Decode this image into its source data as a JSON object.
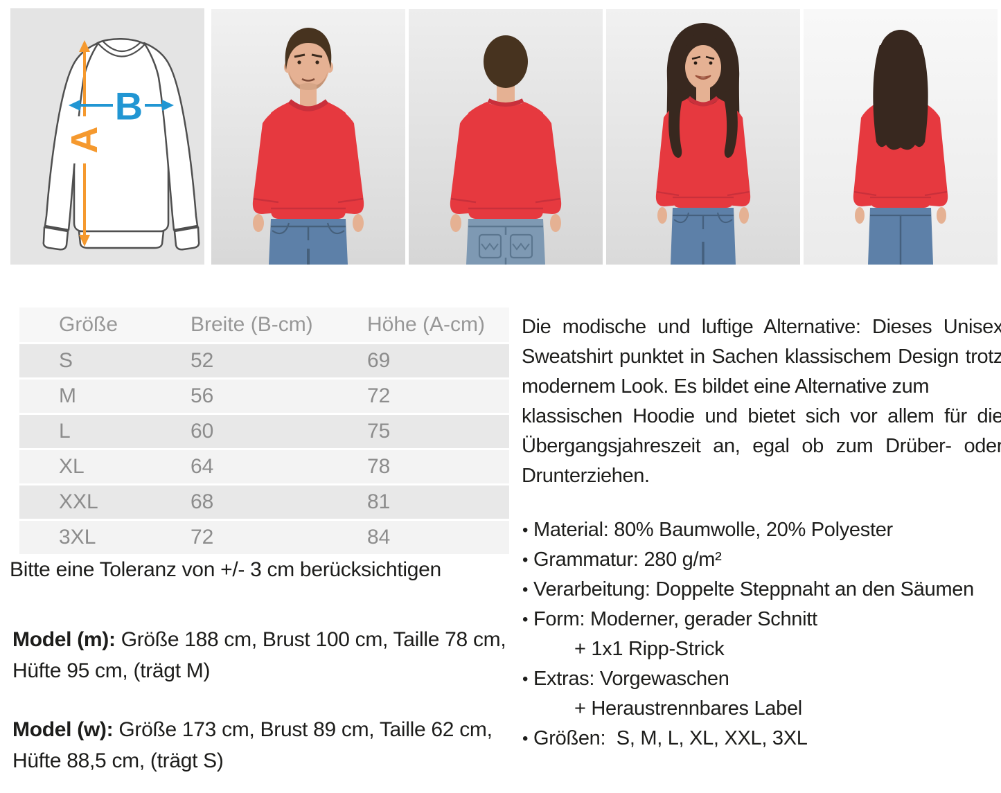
{
  "colors": {
    "sweatshirt-red": "#e6393f",
    "arrow-orange": "#f5992e",
    "arrow-blue": "#2196d3",
    "jeans-blue": "#5d80a8",
    "jeans-blue-light": "#7e99b3",
    "hair-brown": "#47331f",
    "hair-dark": "#38281f",
    "skin-tone": "#e5b193"
  },
  "size_diagram": {
    "label_a": "A",
    "label_b": "B"
  },
  "table": {
    "headers": [
      "Größe",
      "Breite (B-cm)",
      "Höhe (A-cm)"
    ],
    "rows": [
      [
        "S",
        "52",
        "69"
      ],
      [
        "M",
        "56",
        "72"
      ],
      [
        "L",
        "60",
        "75"
      ],
      [
        "XL",
        "64",
        "78"
      ],
      [
        "XXL",
        "68",
        "81"
      ],
      [
        "3XL",
        "72",
        "84"
      ]
    ]
  },
  "tolerance_note": "Bitte eine Toleranz von +/- 3 cm berücksichtigen",
  "model_m": {
    "label": "Model (m):",
    "text": " Größe 188 cm, Brust 100 cm, Taille 78 cm, Hüfte 95 cm, (trägt M)"
  },
  "model_w": {
    "label": "Model (w):",
    "text": " Größe 173 cm, Brust 89 cm, Taille 62 cm, Hüfte 88,5 cm, (trägt S)"
  },
  "description": [
    "Die modische und luftige Alternative: Dieses Unisex Sweatshirt punktet in Sachen klassischem Design trotz modernem Look. Es bildet eine Alternative zum",
    "klassischen Hoodie und bietet sich vor allem für die Übergangsjahreszeit an, egal ob zum Drüber- oder Drunterziehen."
  ],
  "features": [
    {
      "text": "Material: 80% Baumwolle, 20% Polyester",
      "indent": false
    },
    {
      "text": "Grammatur: 280 g/m²",
      "indent": false
    },
    {
      "text": "Verarbeitung: Doppelte Steppnaht an den Säumen",
      "indent": false
    },
    {
      "text": "Form: Moderner, gerader Schnitt",
      "indent": false
    },
    {
      "text": "+ 1x1 Ripp-Strick",
      "indent": true
    },
    {
      "text": "Extras: Vorgewaschen",
      "indent": false
    },
    {
      "text": "+ Heraustrennbares Label",
      "indent": true
    },
    {
      "text": "Größen:  S, M, L, XL, XXL, 3XL",
      "indent": false
    }
  ]
}
